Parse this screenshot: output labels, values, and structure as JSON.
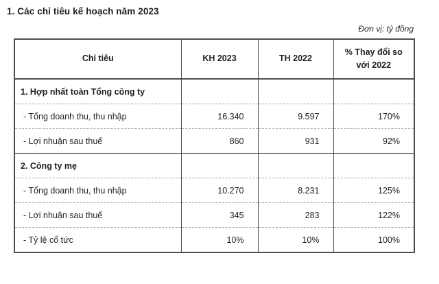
{
  "page": {
    "title": "1. Các chỉ tiêu kế hoạch năm 2023",
    "unit_note": "Đơn vị: tỷ đồng"
  },
  "table": {
    "columns": [
      "Chỉ tiêu",
      "KH 2023",
      "TH 2022",
      "% Thay đổi so với 2022"
    ],
    "rows": [
      {
        "type": "section",
        "label": "1. Hợp nhất toàn Tổng công ty",
        "kh2023": "",
        "th2022": "",
        "change": ""
      },
      {
        "type": "data",
        "label": "- Tổng doanh thu, thu nhập",
        "kh2023": "16.340",
        "th2022": "9.597",
        "change": "170%"
      },
      {
        "type": "data",
        "label": "- Lợi nhuận sau thuế",
        "kh2023": "860",
        "th2022": "931",
        "change": "92%"
      },
      {
        "type": "section",
        "label": "2. Công ty mẹ",
        "kh2023": "",
        "th2022": "",
        "change": ""
      },
      {
        "type": "data",
        "label": "- Tổng doanh thu, thu nhập",
        "kh2023": "10.270",
        "th2022": "8.231",
        "change": "125%"
      },
      {
        "type": "data",
        "label": "- Lợi nhuận sau thuế",
        "kh2023": "345",
        "th2022": "283",
        "change": "122%"
      },
      {
        "type": "data",
        "label": "- Tỷ lệ cổ tức",
        "kh2023": "10%",
        "th2022": "10%",
        "change": "100%"
      }
    ]
  },
  "colors": {
    "text": "#1f1f1f",
    "solid_border": "#4d4d4d",
    "dashed_border": "#a6a6a6",
    "background": "#ffffff"
  }
}
